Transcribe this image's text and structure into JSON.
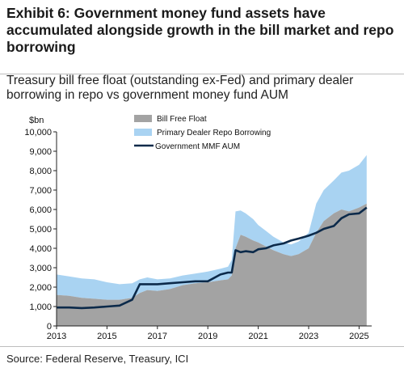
{
  "header": {
    "title": "Exhibit 6: Government money fund assets have accumulated alongside growth in the bill market and repo borrowing",
    "subtitle": "Treasury bill free float (outstanding ex-Fed) and primary dealer borrowing in repo vs government money fund AUM"
  },
  "footer": {
    "source": "Source: Federal Reserve, Treasury, ICI"
  },
  "chart_data": {
    "type": "area",
    "unit_label": "$bn",
    "ylim": [
      0,
      10000
    ],
    "y_ticks": [
      0,
      1000,
      2000,
      3000,
      4000,
      5000,
      6000,
      7000,
      8000,
      9000,
      10000
    ],
    "y_tick_labels": [
      "0",
      "1,000",
      "2,000",
      "3,000",
      "4,000",
      "5,000",
      "6,000",
      "7,000",
      "8,000",
      "9,000",
      "10,000"
    ],
    "xlim": [
      2013,
      2025.5
    ],
    "x_ticks": [
      2013,
      2015,
      2017,
      2019,
      2021,
      2023,
      2025
    ],
    "x_tick_labels": [
      "2013",
      "2015",
      "2017",
      "2019",
      "2021",
      "2023",
      "2025"
    ],
    "grid": false,
    "legend_position": "top-center",
    "x": [
      2013,
      2013.5,
      2014,
      2014.5,
      2015,
      2015.5,
      2016,
      2016.3,
      2016.6,
      2017,
      2017.5,
      2018,
      2018.5,
      2019,
      2019.5,
      2019.8,
      2019.95,
      2020.1,
      2020.3,
      2020.5,
      2020.8,
      2021,
      2021.3,
      2021.6,
      2022,
      2022.3,
      2022.6,
      2023,
      2023.3,
      2023.6,
      2024,
      2024.3,
      2024.6,
      2025,
      2025.3
    ],
    "series": [
      {
        "name": "Bill Free Float",
        "color": "#a3a3a3",
        "values": [
          1600,
          1550,
          1450,
          1400,
          1350,
          1350,
          1450,
          1700,
          1850,
          1800,
          1900,
          2100,
          2200,
          2250,
          2350,
          2400,
          2600,
          4000,
          4700,
          4600,
          4400,
          4300,
          4100,
          3900,
          3700,
          3600,
          3700,
          4000,
          4800,
          5400,
          5800,
          6000,
          5900,
          6100,
          6300
        ]
      },
      {
        "name": "Primary Dealer Repo Borrowing",
        "color": "#a9d3f2",
        "values": [
          1050,
          1000,
          1000,
          1000,
          900,
          800,
          750,
          700,
          650,
          600,
          550,
          500,
          500,
          550,
          600,
          650,
          800,
          1900,
          1250,
          1200,
          1100,
          900,
          800,
          700,
          600,
          600,
          650,
          800,
          1500,
          1600,
          1700,
          1900,
          2100,
          2200,
          2500
        ]
      },
      {
        "name": "Government MMF AUM",
        "color": "#0c2a4a",
        "values": [
          950,
          950,
          920,
          950,
          1000,
          1050,
          1350,
          2150,
          2150,
          2150,
          2200,
          2250,
          2300,
          2300,
          2650,
          2750,
          2750,
          3900,
          3800,
          3850,
          3800,
          3950,
          4000,
          4150,
          4250,
          4400,
          4500,
          4650,
          4800,
          5000,
          5150,
          5550,
          5750,
          5800,
          6100
        ]
      }
    ]
  }
}
